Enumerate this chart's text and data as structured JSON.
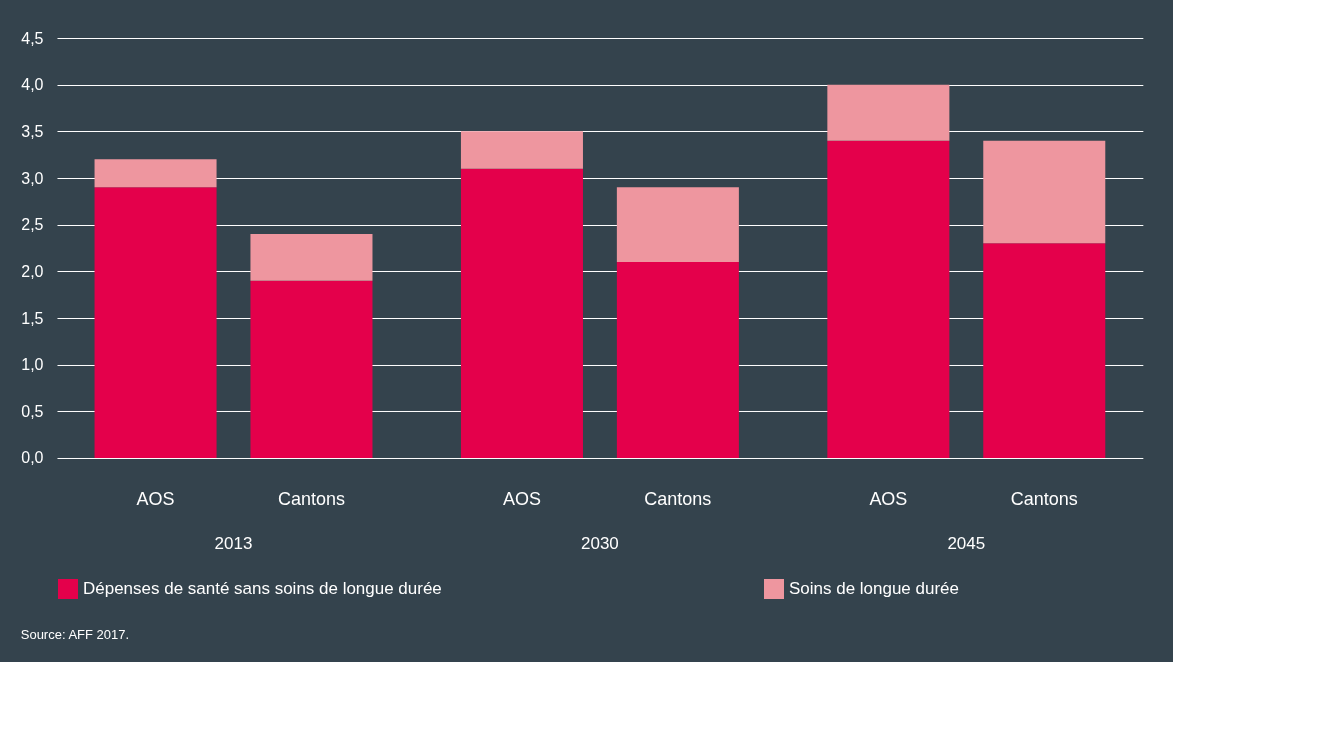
{
  "chart_data": {
    "type": "bar",
    "stacked": true,
    "categories": [
      "AOS",
      "Cantons",
      "AOS",
      "Cantons",
      "AOS",
      "Cantons"
    ],
    "series": [
      {
        "name": "Dépenses de santé sans soins de longue durée",
        "color": "#e4004b",
        "values": [
          2.9,
          1.9,
          3.1,
          2.1,
          3.4,
          2.3
        ]
      },
      {
        "name": "Soins de longue durée",
        "color": "#ee969f",
        "values": [
          0.3,
          0.5,
          0.4,
          0.8,
          0.6,
          1.1
        ]
      }
    ],
    "ylim": [
      0,
      4.5
    ],
    "yticks": [
      {
        "value": 0,
        "label": "0,0"
      },
      {
        "value": 0.5,
        "label": "0,5"
      },
      {
        "value": 1,
        "label": "1,0"
      },
      {
        "value": 1.5,
        "label": "1,5"
      },
      {
        "value": 2,
        "label": "2,0"
      },
      {
        "value": 2.5,
        "label": "2,5"
      },
      {
        "value": 3,
        "label": "3,0"
      },
      {
        "value": 3.5,
        "label": "3,5"
      },
      {
        "value": 4,
        "label": "4,0"
      },
      {
        "value": 4.5,
        "label": "4,5"
      }
    ],
    "grid": "y",
    "legend": "bottom",
    "annotations": [
      "2013",
      "2030",
      "2045",
      "Source: AFF 2017."
    ]
  }
}
